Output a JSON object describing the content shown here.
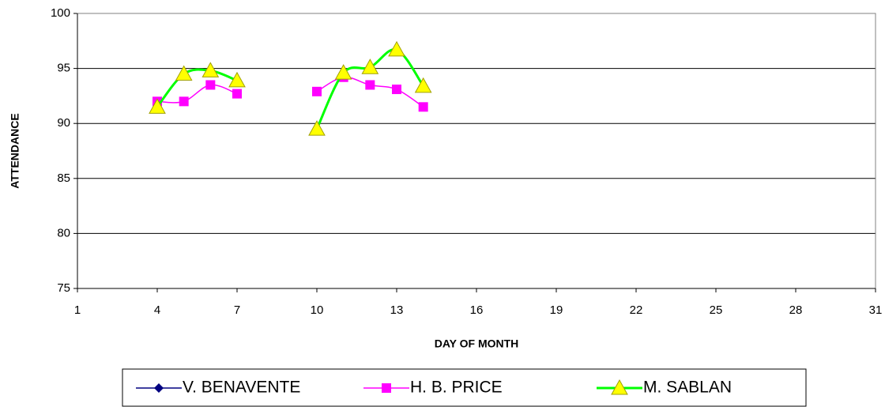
{
  "chart_data": {
    "type": "line",
    "x_label": "DAY OF MONTH",
    "y_label": "ATTENDANCE",
    "x": [
      4,
      5,
      6,
      7,
      8,
      9,
      10,
      11,
      12,
      13,
      14
    ],
    "series": [
      {
        "name": "V. BENAVENTE",
        "color": "#000080",
        "marker": "diamond",
        "values": [
          null,
          null,
          null,
          null,
          null,
          null,
          null,
          null,
          null,
          null,
          null
        ]
      },
      {
        "name": "H. B. PRICE",
        "color": "#ff00ff",
        "marker": "square",
        "values": [
          92.0,
          92.0,
          93.5,
          92.7,
          null,
          null,
          92.9,
          94.2,
          93.5,
          93.1,
          91.5
        ]
      },
      {
        "name": "M. SABLAN",
        "color": "#00ff00",
        "marker": "triangle",
        "marker_color": "#ffff00",
        "values": [
          91.5,
          94.5,
          94.8,
          93.9,
          null,
          null,
          89.5,
          94.6,
          95.1,
          96.7,
          93.4
        ]
      }
    ],
    "xlim": [
      1,
      31
    ],
    "xticks": [
      1,
      4,
      7,
      10,
      13,
      16,
      19,
      22,
      25,
      28,
      31
    ],
    "ylim": [
      75,
      100
    ],
    "yticks": [
      75,
      80,
      85,
      90,
      95,
      100
    ],
    "grid": true,
    "smooth": true,
    "legend": "bottom"
  }
}
